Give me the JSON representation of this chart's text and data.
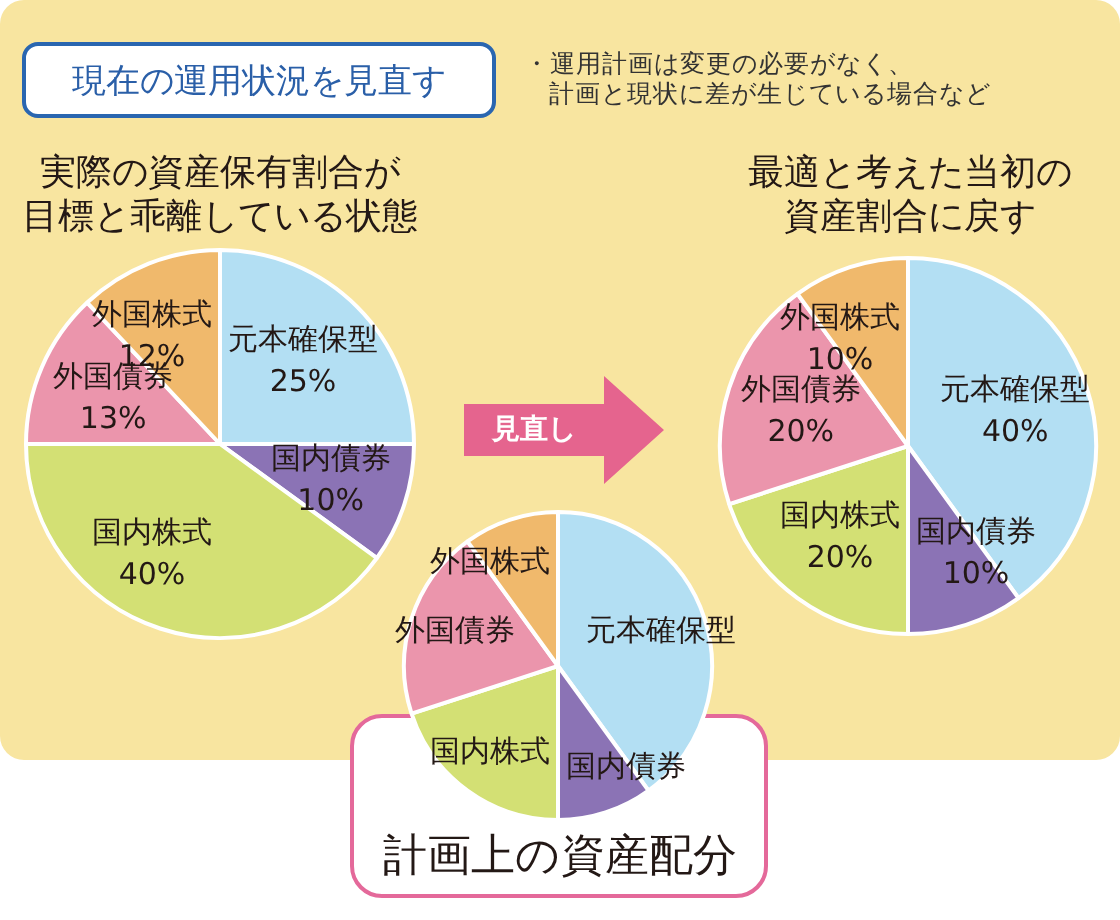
{
  "chart_data": [
    {
      "type": "other",
      "title": "現在の運用状況を見直す",
      "annotations": [
        "・運用計画は変更の必要がなく、計画と現状に差が生じている場合など"
      ]
    },
    {
      "type": "pie",
      "title": "実際の資産保有割合が目標と乖離している状態",
      "categories": [
        "元本確保型",
        "国内債券",
        "国内株式",
        "外国債券",
        "外国株式"
      ],
      "values": [
        25,
        10,
        40,
        13,
        12
      ],
      "colors": [
        "#b3dff3",
        "#8b73b5",
        "#d3e074",
        "#eb95ac",
        "#f0b96c"
      ],
      "value_labels": [
        "25%",
        "10%",
        "40%",
        "13%",
        "12%"
      ]
    },
    {
      "type": "pie",
      "title": "最適と考えた当初の資産割合に戻す",
      "categories": [
        "元本確保型",
        "国内債券",
        "国内株式",
        "外国債券",
        "外国株式"
      ],
      "values": [
        40,
        10,
        20,
        20,
        10
      ],
      "colors": [
        "#b3dff3",
        "#8b73b5",
        "#d3e074",
        "#eb95ac",
        "#f0b96c"
      ],
      "value_labels": [
        "40%",
        "10%",
        "20%",
        "20%",
        "10%"
      ],
      "annotations": [
        "見直し"
      ]
    },
    {
      "type": "pie",
      "title": "計画上の資産配分",
      "categories": [
        "元本確保型",
        "国内債券",
        "国内株式",
        "外国債券",
        "外国株式"
      ],
      "values": [
        40,
        10,
        20,
        20,
        10
      ],
      "colors": [
        "#b3dff3",
        "#8b73b5",
        "#d3e074",
        "#eb95ac",
        "#f0b96c"
      ]
    }
  ]
}
